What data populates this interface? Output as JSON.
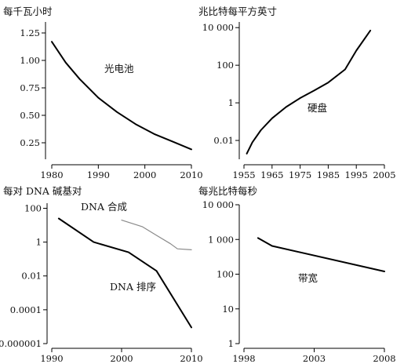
{
  "chart_data": [
    {
      "type": "line",
      "ylabel": "每千瓦小时",
      "xlim": [
        1980,
        2010
      ],
      "ylim": [
        0.1,
        1.35
      ],
      "y_scale": "linear",
      "grid": false,
      "x_ticks": [
        "1980",
        "1990",
        "2000",
        "2010"
      ],
      "y_ticks": [
        "0.25",
        "0.50",
        "0.75",
        "1.00",
        "1.25"
      ],
      "series": [
        {
          "name": "光电池",
          "color": "#000000",
          "x": [
            1980,
            1983,
            1986,
            1990,
            1994,
            1998,
            2002,
            2006,
            2010
          ],
          "y": [
            1.17,
            0.98,
            0.83,
            0.66,
            0.53,
            0.42,
            0.33,
            0.26,
            0.19
          ]
        }
      ]
    },
    {
      "type": "line",
      "ylabel": "兆比特每平方英寸",
      "xlim": [
        1955,
        2005
      ],
      "ylim": [
        0.001,
        20000
      ],
      "y_scale": "log",
      "grid": false,
      "x_ticks": [
        "1955",
        "1965",
        "1975",
        "1985",
        "1995",
        "2005"
      ],
      "y_ticks": [
        "0.01",
        "1",
        "100",
        "10 000"
      ],
      "series": [
        {
          "name": "硬盘",
          "color": "#000000",
          "x": [
            1956,
            1958,
            1961,
            1965,
            1970,
            1975,
            1980,
            1985,
            1991,
            1995,
            2000
          ],
          "y": [
            0.002,
            0.008,
            0.035,
            0.15,
            0.6,
            1.8,
            4.5,
            12,
            60,
            600,
            7000
          ]
        }
      ]
    },
    {
      "type": "line",
      "ylabel": "每对 DNA 碱基对",
      "xlim": [
        1990,
        2010
      ],
      "ylim": [
        1e-06,
        200
      ],
      "y_scale": "log",
      "grid": false,
      "x_ticks": [
        "1990",
        "2000",
        "2010"
      ],
      "y_ticks": [
        "0.000001",
        "0.0001",
        "0.01",
        "1",
        "100"
      ],
      "series": [
        {
          "name": "DNA 合成",
          "color": "#8a8a8a",
          "x": [
            2000,
            2003,
            2005,
            2007,
            2008,
            2010
          ],
          "y": [
            20,
            8,
            2.5,
            0.8,
            0.4,
            0.35
          ]
        },
        {
          "name": "DNA 排序",
          "color": "#000000",
          "x": [
            1991,
            1996,
            2001,
            2005,
            2010
          ],
          "y": [
            25,
            1,
            0.25,
            0.02,
            9e-06
          ]
        }
      ]
    },
    {
      "type": "line",
      "ylabel": "每兆比特每秒",
      "xlim": [
        1998,
        2008
      ],
      "ylim": [
        1,
        10000
      ],
      "y_scale": "log",
      "grid": false,
      "x_ticks": [
        "1998",
        "2003",
        "2008"
      ],
      "y_ticks": [
        "1",
        "10",
        "100",
        "1 000",
        "10 000"
      ],
      "series": [
        {
          "name": "带宽",
          "color": "#000000",
          "x": [
            1999,
            2000,
            2008
          ],
          "y": [
            1100,
            650,
            120
          ]
        }
      ]
    }
  ]
}
